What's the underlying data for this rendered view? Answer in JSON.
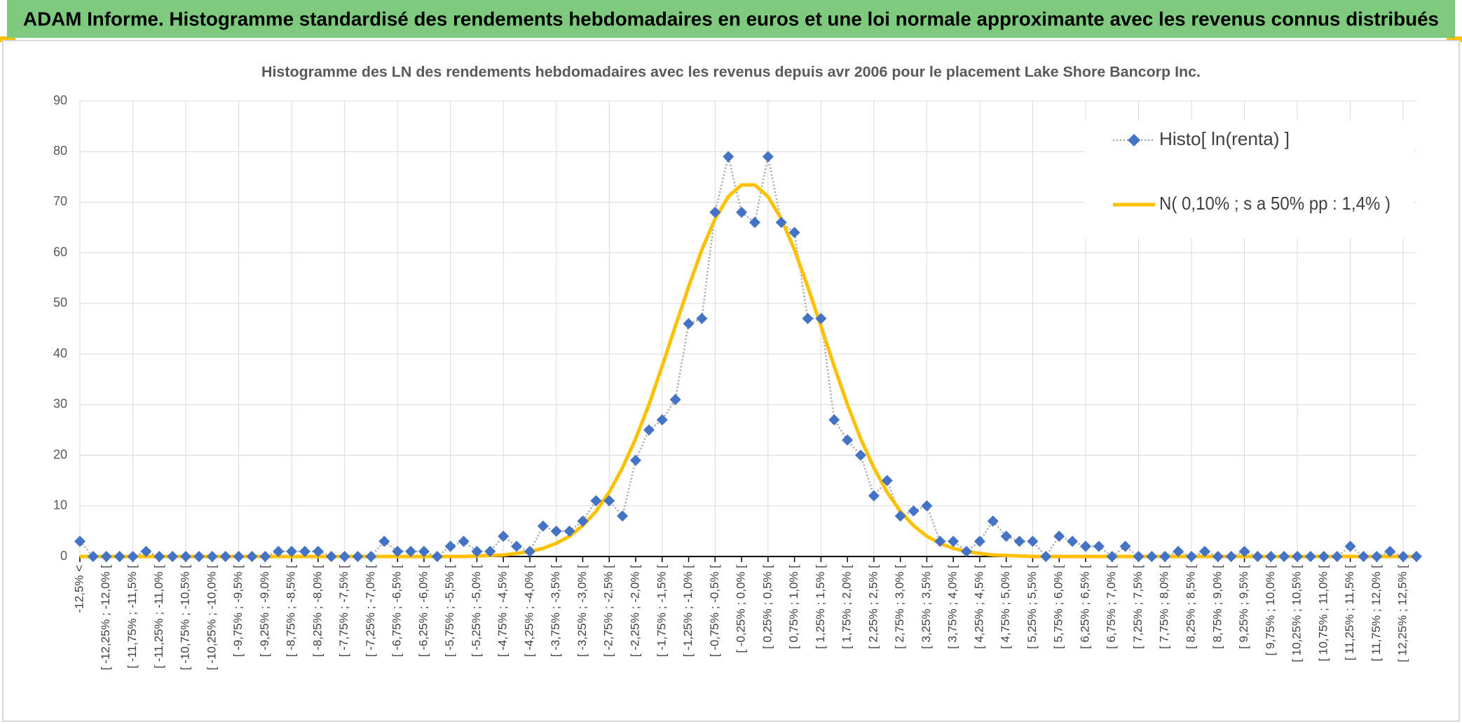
{
  "chart_data": {
    "type": "line",
    "header": "ADAM Informe. Histogramme standardisé des rendements hebdomadaires en euros et une loi normale approximante avec les revenus connus distribués",
    "title": "Histogramme des LN des rendements hebdomadaires avec les revenus depuis avr 2006 pour le placement Lake Shore Bancorp Inc.",
    "categories": [
      "-12,5% <",
      null,
      "[ -12,25% ; -12,0% [",
      null,
      "[ -11,75% ; -11,5% [",
      null,
      "[ -11,25% ; -11,0% [",
      null,
      "[ -10,75% ; -10,5% [",
      null,
      "[ -10,25% ; -10,0% [",
      null,
      "[ -9,75% ; -9,5% [",
      null,
      "[ -9,25% ; -9,0% [",
      null,
      "[ -8,75% ; -8,5% [",
      null,
      "[ -8,25% ; -8,0% [",
      null,
      "[ -7,75% ; -7,5% [",
      null,
      "[ -7,25% ; -7,0% [",
      null,
      "[ -6,75% ; -6,5% [",
      null,
      "[ -6,25% ; -6,0% [",
      null,
      "[ -5,75% ; -5,5% [",
      null,
      "[ -5,25% ; -5,0% [",
      null,
      "[ -4,75% ; -4,5% [",
      null,
      "[ -4,25% ; -4,0% [",
      null,
      "[ -3,75% ; -3,5% [",
      null,
      "[ -3,25% ; -3,0% [",
      null,
      "[ -2,75% ; -2,5% [",
      null,
      "[ -2,25% ; -2,0% [",
      null,
      "[ -1,75% ; -1,5% [",
      null,
      "[ -1,25% ; -1,0% [",
      null,
      "[ -0,75% ; -0,5% [",
      null,
      "[ -0,25% ; 0,0% [",
      null,
      "[ 0,25% ; 0,5% [",
      null,
      "[ 0,75% ; 1,0% [",
      null,
      "[ 1,25% ; 1,5% [",
      null,
      "[ 1,75% ; 2,0% [",
      null,
      "[ 2,25% ; 2,5% [",
      null,
      "[ 2,75% ; 3,0% [",
      null,
      "[ 3,25% ; 3,5% [",
      null,
      "[ 3,75% ; 4,0% [",
      null,
      "[ 4,25% ; 4,5% [",
      null,
      "[ 4,75% ; 5,0% [",
      null,
      "[ 5,25% ; 5,5% [",
      null,
      "[ 5,75% ; 6,0% [",
      null,
      "[ 6,25% ; 6,5% [",
      null,
      "[ 6,75% ; 7,0% [",
      null,
      "[ 7,25% ; 7,5% [",
      null,
      "[ 7,75% ; 8,0% [",
      null,
      "[ 8,25% ; 8,5% [",
      null,
      "[ 8,75% ; 9,0% [",
      null,
      "[ 9,25% ; 9,5% [",
      null,
      "[ 9,75% ; 10,0% [",
      null,
      "[ 10,25% ; 10,5% [",
      null,
      "[ 10,75% ; 11,0% [",
      null,
      "[ 11,25% ; 11,5% [",
      null,
      "[ 11,75% ; 12,0% [",
      null,
      "[ 12,25% ; 12,5% [",
      null
    ],
    "series": [
      {
        "name": "Histo[ ln(renta) ]",
        "color": "#4472c4",
        "line_color": "#a5a5a5",
        "values": [
          3,
          0,
          0,
          0,
          0,
          1,
          0,
          0,
          0,
          0,
          0,
          0,
          0,
          0,
          0,
          1,
          1,
          1,
          1,
          0,
          0,
          0,
          0,
          3,
          1,
          1,
          1,
          0,
          2,
          3,
          1,
          1,
          4,
          2,
          1,
          6,
          5,
          5,
          7,
          11,
          11,
          8,
          19,
          25,
          27,
          31,
          46,
          47,
          68,
          79,
          68,
          66,
          79,
          66,
          64,
          47,
          47,
          27,
          23,
          20,
          12,
          15,
          8,
          9,
          10,
          3,
          3,
          1,
          3,
          7,
          4,
          3,
          3,
          0,
          4,
          3,
          2,
          2,
          0,
          2,
          0,
          0,
          0,
          1,
          0,
          1,
          0,
          0,
          1,
          0,
          0,
          0,
          0,
          0,
          0,
          0,
          2,
          0,
          0,
          1,
          0,
          0
        ]
      },
      {
        "name": "N( 0,10% ; s a 50% pp : 1,4% )",
        "color": "#ffc000",
        "values": [
          0,
          0,
          0,
          0,
          0,
          0,
          0,
          0,
          0,
          0,
          0,
          0,
          0,
          0,
          0,
          0,
          0,
          0,
          0,
          0,
          0,
          0,
          0,
          0,
          0,
          0,
          0,
          0,
          0,
          0,
          0.1,
          0.2,
          0.3,
          0.6,
          1.0,
          1.6,
          2.6,
          4.0,
          6.1,
          8.9,
          12.7,
          17.5,
          23.3,
          30.0,
          37.6,
          45.5,
          53.3,
          60.6,
          66.7,
          71.1,
          73.4,
          73.4,
          71.1,
          66.7,
          60.6,
          53.3,
          45.5,
          37.6,
          30.0,
          23.3,
          17.5,
          12.7,
          8.9,
          6.1,
          4.0,
          2.6,
          1.6,
          1.0,
          0.6,
          0.3,
          0.2,
          0.1,
          0,
          0,
          0,
          0,
          0,
          0,
          0,
          0,
          0,
          0,
          0,
          0,
          0,
          0,
          0,
          0,
          0,
          0,
          0,
          0,
          0,
          0,
          0,
          0,
          0,
          0,
          0,
          0,
          0,
          0
        ]
      }
    ],
    "ylim": [
      0,
      90
    ],
    "yticks": [
      0,
      10,
      20,
      30,
      40,
      50,
      60,
      70,
      80,
      90
    ],
    "grid": true,
    "legend": "upper right"
  }
}
